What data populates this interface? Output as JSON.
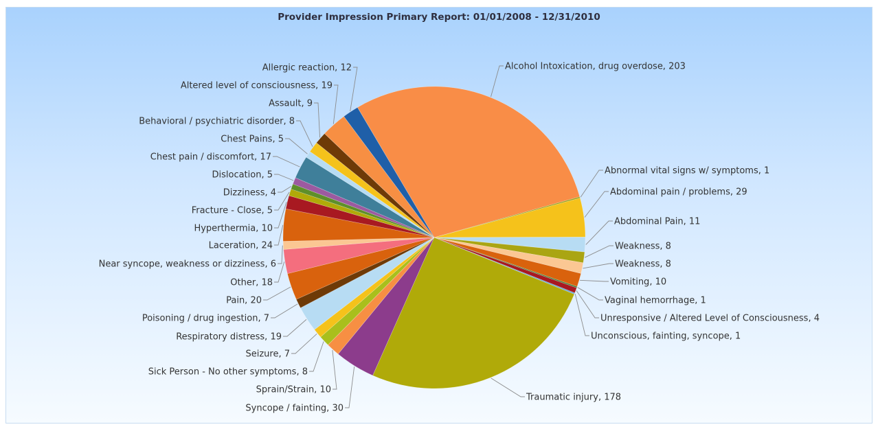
{
  "chart_data": {
    "type": "pie",
    "title": "Provider Impression Primary Report: 01/01/2008 - 12/31/2010",
    "slices": [
      {
        "label": "Alcohol Intoxication, drug overdose",
        "value": 203,
        "color": "#f98d47",
        "display": "Alcohol Intoxication, drug overdose, 203"
      },
      {
        "label": "Abnormal vital signs w/ symptoms",
        "value": 1,
        "color": "#9aa11a",
        "display": "Abnormal vital signs w/ symptoms, 1"
      },
      {
        "label": "Abdominal pain / problems",
        "value": 29,
        "color": "#f5c21b",
        "display": "Abdominal pain / problems, 29"
      },
      {
        "label": "Abdominal Pain",
        "value": 11,
        "color": "#b7dcf3",
        "display": "Abdominal Pain, 11"
      },
      {
        "label": "Weakness",
        "value": 8,
        "color": "#aaa513",
        "display": "Weakness, 8"
      },
      {
        "label": "Weakness",
        "value": 8,
        "color": "#fbc793",
        "display": "Weakness, 8"
      },
      {
        "label": "Vomiting",
        "value": 10,
        "color": "#d9620d",
        "display": "Vomiting, 10"
      },
      {
        "label": "Vaginal hemorrhage",
        "value": 1,
        "color": "#3f7a2e",
        "display": "Vaginal hemorrhage, 1"
      },
      {
        "label": "Unresponsive / Altered Level of Consciousness",
        "value": 4,
        "color": "#a81921",
        "display": "Unresponsive / Altered Level of Consciousness, 4"
      },
      {
        "label": "Unconscious, fainting, syncope",
        "value": 1,
        "color": "#65a8d6",
        "display": "Unconscious, fainting, syncope, 1"
      },
      {
        "label": "Traumatic injury",
        "value": 178,
        "color": "#b0aa09",
        "display": "Traumatic injury, 178"
      },
      {
        "label": "Syncope / fainting",
        "value": 30,
        "color": "#8c3c8c",
        "display": "Syncope / fainting, 30"
      },
      {
        "label": "Sprain/Strain",
        "value": 10,
        "color": "#f78f43",
        "display": "Sprain/Strain, 10"
      },
      {
        "label": "Sick Person - No other symptoms",
        "value": 8,
        "color": "#a9bf1c",
        "display": "Sick Person - No other symptoms, 8"
      },
      {
        "label": "Seizure",
        "value": 7,
        "color": "#f5c21b",
        "display": "Seizure, 7"
      },
      {
        "label": "Respiratory distress",
        "value": 19,
        "color": "#b7dcf3",
        "display": "Respiratory distress, 19"
      },
      {
        "label": "Poisoning / drug ingestion",
        "value": 7,
        "color": "#6e3a07",
        "display": "Poisoning / drug ingestion, 7"
      },
      {
        "label": "Pain",
        "value": 20,
        "color": "#d9620d",
        "display": "Pain, 20"
      },
      {
        "label": "Other",
        "value": 18,
        "color": "#f46e7e",
        "display": "Other, 18"
      },
      {
        "label": "Near syncope, weakness or dizziness",
        "value": 6,
        "color": "#fbc793",
        "display": "Near syncope, weakness or dizziness, 6"
      },
      {
        "label": "Laceration",
        "value": 24,
        "color": "#d9620d",
        "display": "Laceration, 24"
      },
      {
        "label": "Hyperthermia",
        "value": 10,
        "color": "#a81921",
        "display": "Hyperthermia, 10"
      },
      {
        "label": "Fracture - Close",
        "value": 5,
        "color": "#b0aa09",
        "display": "Fracture - Close, 5"
      },
      {
        "label": "Dizziness",
        "value": 4,
        "color": "#5e8f2a",
        "display": "Dizziness, 4"
      },
      {
        "label": "Dislocation",
        "value": 5,
        "color": "#9c5aa0",
        "display": "Dislocation, 5"
      },
      {
        "label": "Chest pain / discomfort",
        "value": 17,
        "color": "#3f7f9a",
        "display": "Chest pain / discomfort, 17"
      },
      {
        "label": "Chest Pains",
        "value": 5,
        "color": "#b7dcf3",
        "display": "Chest Pains, 5"
      },
      {
        "label": "Behavioral / psychiatric disorder",
        "value": 8,
        "color": "#f5c21b",
        "display": "Behavioral / psychiatric disorder, 8"
      },
      {
        "label": "Assault",
        "value": 9,
        "color": "#6e3a07",
        "display": "Assault, 9"
      },
      {
        "label": "Altered level of consciousness",
        "value": 19,
        "color": "#f78f43",
        "display": "Altered level of consciousness, 19"
      },
      {
        "label": "Allergic reaction",
        "value": 12,
        "color": "#1f5fa8",
        "display": "Allergic reaction, 12"
      }
    ],
    "legend": "none"
  }
}
